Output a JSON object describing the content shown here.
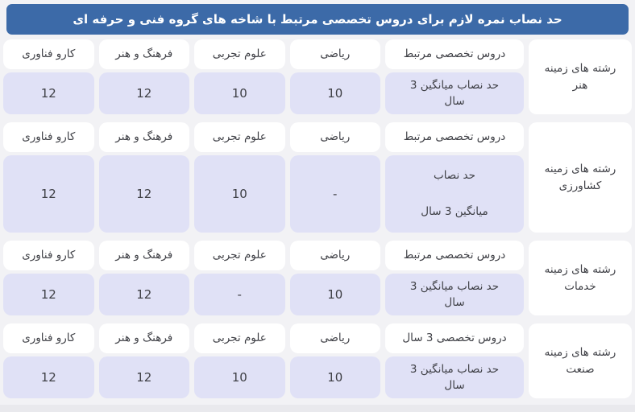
{
  "title": "حد نصاب نمره لازم برای دروس تخصصی مرتبط با شاخه های گروه فنی و حرفه ای",
  "colors": {
    "title_bg": "#3c6aa8",
    "title_text": "#ffffff",
    "header_cell_bg": "#ffffff",
    "value_cell_bg": "#e0e1f6",
    "text": "#3f4046",
    "page_bg": "#f2f2f5"
  },
  "sections": [
    {
      "group": "رشته های زمینه\nهنر",
      "columns": [
        "دروس تخصصی مرتبط",
        "ریاضی",
        "علوم تجربی",
        "فرهنگ و هنر",
        "کارو فناوری"
      ],
      "row_label": "حد نصاب میانگین 3\nسال",
      "values": [
        "10",
        "10",
        "12",
        "12"
      ],
      "tall": false
    },
    {
      "group": "رشته های زمینه\nکشاورزی",
      "columns": [
        "دروس تخصصی مرتبط",
        "ریاضی",
        "علوم تجربی",
        "فرهنگ و هنر",
        "کارو فناوری"
      ],
      "row_label": "حد نصاب\n\nمیانگین 3 سال",
      "values": [
        "-",
        "10",
        "12",
        "12"
      ],
      "tall": true
    },
    {
      "group": "رشته های زمینه\nخدمات",
      "columns": [
        "دروس تخصصی مرتبط",
        "ریاضی",
        "علوم تجربی",
        "فرهنگ و هنر",
        "کارو فناوری"
      ],
      "row_label": "حد نصاب میانگین 3\nسال",
      "values": [
        "10",
        "-",
        "12",
        "12"
      ],
      "tall": false
    },
    {
      "group": "رشته های زمینه\nصنعت",
      "columns": [
        "دروس تخصصی 3 سال",
        "ریاضی",
        "علوم تجربی",
        "فرهنگ و هنر",
        "کارو فناوری"
      ],
      "row_label": "حد نصاب میانگین 3\nسال",
      "values": [
        "10",
        "10",
        "12",
        "12"
      ],
      "tall": false
    }
  ]
}
